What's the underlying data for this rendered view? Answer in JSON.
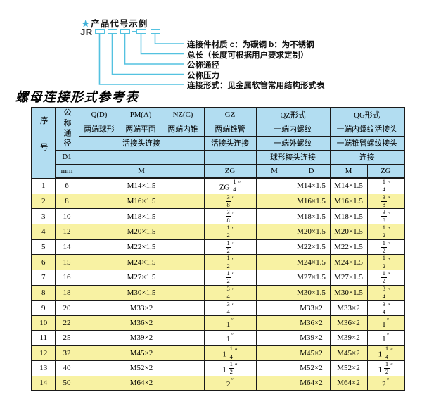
{
  "colors": {
    "header_bg": "#b2ddf1",
    "alt_row": "#f8f2a3",
    "cyan": "#54c2e0",
    "star": "#3fb0d8"
  },
  "diagram": {
    "star": "★",
    "heading": "产品代号示例",
    "code_prefix": "JR",
    "labels": [
      "连接件材质  c：为碳钢  b：为不锈钢",
      "总长（长度可根据用户要求定制）",
      "公称通径",
      "公称压力",
      "连接形式：见金属软管常用结构形式表"
    ]
  },
  "table": {
    "title": "螺母连接形式参考表",
    "header": {
      "seq": "序号",
      "nominal": "公称通径",
      "d1": "D1",
      "mm": "mm",
      "q": "Q(D)",
      "q_sub": "两端球形",
      "pm": "PM(A)",
      "pm_sub": "两端平面",
      "nz": "NZ(C)",
      "nz_sub": "两端内锥",
      "gz": "GZ",
      "gz_sub": "两端锥管",
      "qz": "QZ形式",
      "qz_sub1": "一端内螺纹",
      "qz_sub2": "一端外螺纹",
      "qz_sub3": "球形接头连接",
      "qg": "QG形式",
      "qg_sub1": "一端内螺纹活接头",
      "qg_sub2": "一端锥管螺纹接头",
      "qg_sub3": "连接",
      "union_joint": "活接头连接",
      "m": "M",
      "d": "D",
      "zg": "ZG"
    },
    "rows": [
      {
        "no": "1",
        "mm": "6",
        "m": "M14×1.5",
        "gz": "ZG 1/4″",
        "qz_m": "",
        "qz_d": "M14×1.5",
        "qg_m": "M14×1.5",
        "qg_zg": "1/4″"
      },
      {
        "no": "2",
        "mm": "8",
        "m": "M16×1.5",
        "gz": "3/8″",
        "qz_m": "",
        "qz_d": "M16×1.5",
        "qg_m": "M16×1.5",
        "qg_zg": "3/8″"
      },
      {
        "no": "3",
        "mm": "10",
        "m": "M18×1.5",
        "gz": "3/8″",
        "qz_m": "",
        "qz_d": "M18×1.5",
        "qg_m": "M18×1.5",
        "qg_zg": "3/8″"
      },
      {
        "no": "4",
        "mm": "12",
        "m": "M20×1.5",
        "gz": "1/2″",
        "qz_m": "",
        "qz_d": "M20×1.5",
        "qg_m": "M20×1.5",
        "qg_zg": "1/2″"
      },
      {
        "no": "5",
        "mm": "14",
        "m": "M22×1.5",
        "gz": "1/2″",
        "qz_m": "",
        "qz_d": "M22×1.5",
        "qg_m": "M22×1.5",
        "qg_zg": "1/2″"
      },
      {
        "no": "6",
        "mm": "15",
        "m": "M24×1.5",
        "gz": "1/2″",
        "qz_m": "",
        "qz_d": "M24×1.5",
        "qg_m": "M24×1.5",
        "qg_zg": "1/2″"
      },
      {
        "no": "7",
        "mm": "16",
        "m": "M27×1.5",
        "gz": "1/2″",
        "qz_m": "",
        "qz_d": "M27×1.5",
        "qg_m": "M27×1.5",
        "qg_zg": "1/2″"
      },
      {
        "no": "8",
        "mm": "18",
        "m": "M30×1.5",
        "gz": "3/4″",
        "qz_m": "",
        "qz_d": "M30×1.5",
        "qg_m": "M30×1.5",
        "qg_zg": "3/4″"
      },
      {
        "no": "9",
        "mm": "20",
        "m": "M33×2",
        "gz": "3/4″",
        "qz_m": "",
        "qz_d": "M33×2",
        "qg_m": "M33×2",
        "qg_zg": "3/4″"
      },
      {
        "no": "10",
        "mm": "22",
        "m": "M36×2",
        "gz": "1″",
        "qz_m": "",
        "qz_d": "M36×2",
        "qg_m": "M36×2",
        "qg_zg": "1″"
      },
      {
        "no": "11",
        "mm": "25",
        "m": "M39×2",
        "gz": "1″",
        "qz_m": "",
        "qz_d": "M39×2",
        "qg_m": "M39×2",
        "qg_zg": "1″"
      },
      {
        "no": "12",
        "mm": "32",
        "m": "M45×2",
        "gz": "1 1/4″",
        "qz_m": "",
        "qz_d": "M45×2",
        "qg_m": "M45×2",
        "qg_zg": "1 1/4″"
      },
      {
        "no": "13",
        "mm": "40",
        "m": "M52×2",
        "gz": "1 1/2″",
        "qz_m": "",
        "qz_d": "M52×2",
        "qg_m": "M52×2",
        "qg_zg": "1 1/2″"
      },
      {
        "no": "14",
        "mm": "50",
        "m": "M64×2",
        "gz": "2″",
        "qz_m": "",
        "qz_d": "M64×2",
        "qg_m": "M64×2",
        "qg_zg": "2″"
      }
    ]
  }
}
